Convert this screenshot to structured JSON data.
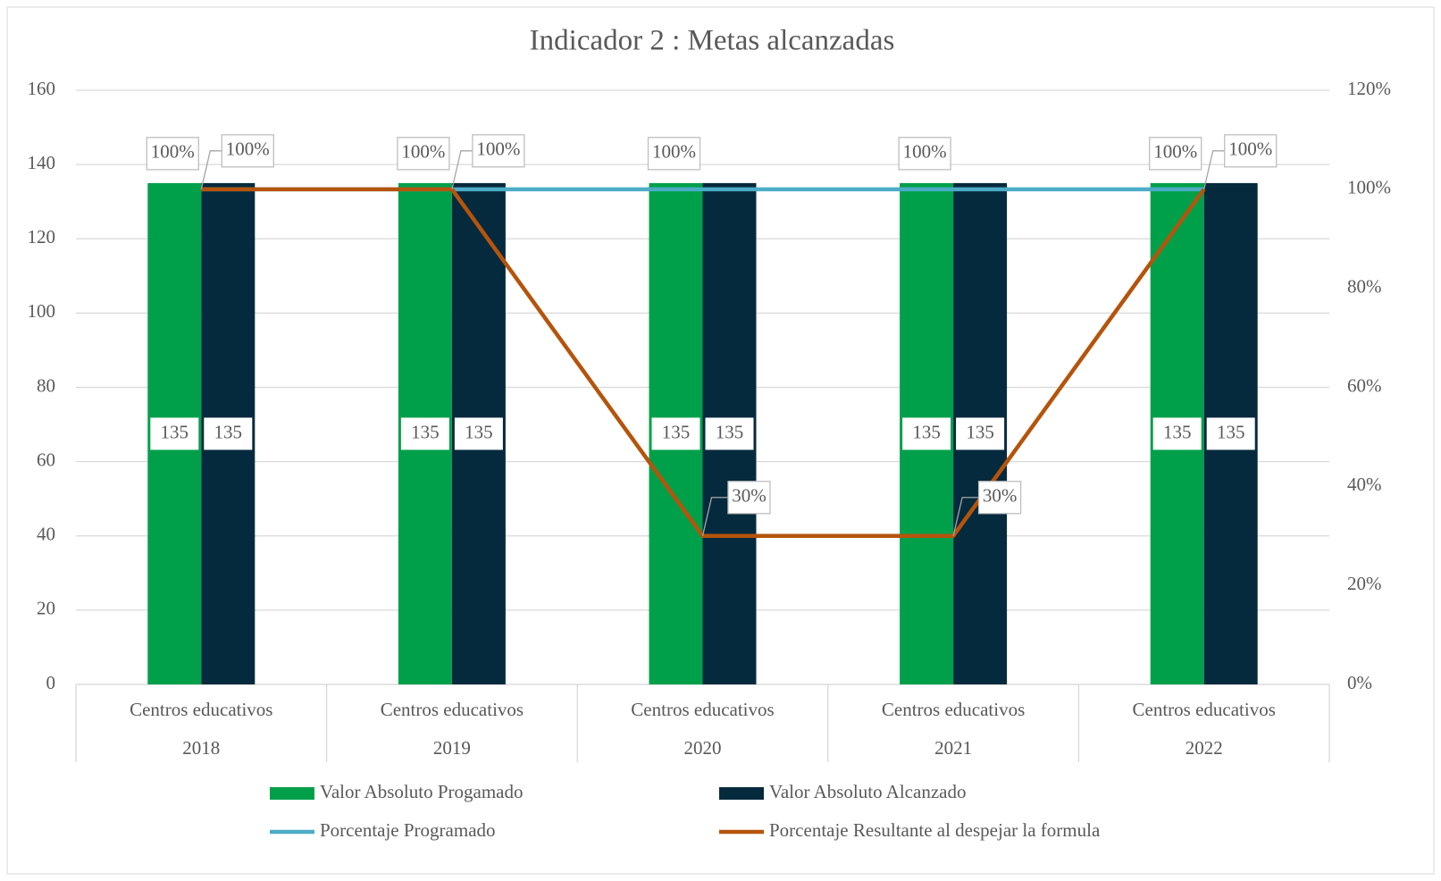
{
  "chart_data": {
    "type": "bar_line",
    "title": "Indicador 2 : Metas alcanzadas",
    "categories": [
      "Centros educativos",
      "Centros educativos",
      "Centros educativos",
      "Centros educativos",
      "Centros educativos"
    ],
    "category_groups": [
      "2018",
      "2019",
      "2020",
      "2021",
      "2022"
    ],
    "series": [
      {
        "name": "Valor Absoluto Progamado",
        "type": "bar",
        "color": "#00a04a",
        "values": [
          135,
          135,
          135,
          135,
          135
        ]
      },
      {
        "name": "Valor Absoluto Alcanzado",
        "type": "bar",
        "color": "#062a3d",
        "values": [
          135,
          135,
          135,
          135,
          135
        ]
      },
      {
        "name": "Porcentaje Programado",
        "type": "line",
        "axis": "y2",
        "color": "#4bacc6",
        "values": [
          100,
          100,
          100,
          100,
          100
        ],
        "value_labels": [
          "100%",
          "100%",
          "100%",
          "100%",
          "100%"
        ]
      },
      {
        "name": "Porcentaje Resultante al despejar la formula",
        "type": "line",
        "axis": "y2",
        "color": "#b5540c",
        "values": [
          100,
          100,
          30,
          30,
          100
        ],
        "value_labels": [
          "100%",
          "100%",
          "30%",
          "30%",
          "100%"
        ]
      }
    ],
    "ylim": [
      0,
      160
    ],
    "yticks": [
      0,
      20,
      40,
      60,
      80,
      100,
      120,
      140,
      160
    ],
    "y2lim": [
      0,
      120
    ],
    "y2ticks": [
      {
        "value": 0,
        "label": "0%"
      },
      {
        "value": 20,
        "label": "20%"
      },
      {
        "value": 40,
        "label": "40%"
      },
      {
        "value": 60,
        "label": "60%"
      },
      {
        "value": 80,
        "label": "80%"
      },
      {
        "value": 100,
        "label": "100%"
      },
      {
        "value": 120,
        "label": "120%"
      }
    ],
    "grid": true,
    "legend": "bottom"
  }
}
